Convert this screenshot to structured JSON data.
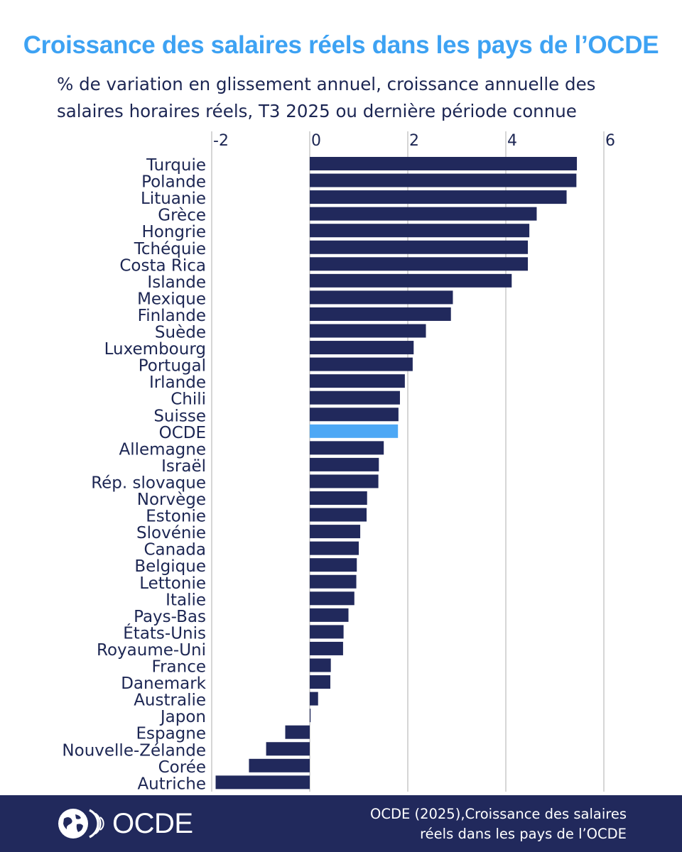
{
  "header": {
    "title": "Croissance des salaires réels dans les pays de l’OCDE",
    "subtitle": "% de variation en glissement annuel, croissance annuelle des salaires horaires réels, T3 2025 ou dernière période connue"
  },
  "chart_data": {
    "type": "bar",
    "orientation": "horizontal",
    "title": "Croissance des salaires réels dans les pays de l’OCDE",
    "subtitle": "% de variation en glissement annuel, croissance annuelle des salaires horaires réels, T3 2025 ou dernière période connue",
    "xlim": [
      -2,
      6
    ],
    "x_ticks": [
      "-2",
      "0",
      "2",
      "4",
      "6"
    ],
    "tick_values": [
      -2,
      0,
      2,
      4,
      6
    ],
    "grid": true,
    "axis_position": "top",
    "categories": [
      "Turquie",
      "Polande",
      "Lituanie",
      "Grèce",
      "Hongrie",
      "Tchéquie",
      "Costa Rica",
      "Islande",
      "Mexique",
      "Finlande",
      "Suède",
      "Luxembourg",
      "Portugal",
      "Irlande",
      "Chili",
      "Suisse",
      "OCDE",
      "Allemagne",
      "Israël",
      "Rép. slovaque",
      "Norvège",
      "Estonie",
      "Slovénie",
      "Canada",
      "Belgique",
      "Lettonie",
      "Italie",
      "Pays-Bas",
      "États-Unis",
      "Royaume-Uni",
      "France",
      "Danemark",
      "Australie",
      "Japon",
      "Espagne",
      "Nouvelle-Zélande",
      "Corée",
      "Autriche"
    ],
    "values": [
      5.45,
      5.44,
      5.24,
      4.63,
      4.48,
      4.45,
      4.45,
      4.12,
      2.92,
      2.88,
      2.37,
      2.12,
      2.1,
      1.94,
      1.84,
      1.81,
      1.8,
      1.51,
      1.41,
      1.4,
      1.17,
      1.16,
      1.03,
      1.0,
      0.96,
      0.95,
      0.91,
      0.79,
      0.69,
      0.68,
      0.43,
      0.42,
      0.17,
      0.01,
      -0.5,
      -0.89,
      -1.24,
      -1.92
    ],
    "highlight": "OCDE",
    "colors": {
      "bar": "#21295c",
      "highlight": "#4da8f5",
      "grid": "#c8c8c8"
    }
  },
  "footer": {
    "logo_text": "OCDE",
    "source": [
      "OCDE (2025),Croissance des salaires",
      "réels dans les pays de l’OCDE"
    ]
  }
}
